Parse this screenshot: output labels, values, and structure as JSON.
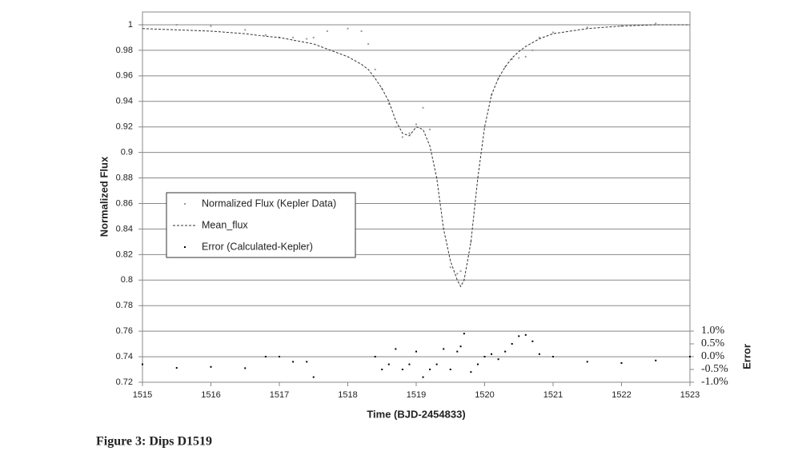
{
  "chart_data": {
    "type": "line",
    "caption": "Figure 3: Dips D1519",
    "xlabel": "Time (BJD-2454833)",
    "ylabel": "Normalized Flux",
    "y2label": "Error",
    "x": [
      1515,
      1515.5,
      1516,
      1516.5,
      1516.8,
      1517,
      1517.2,
      1517.4,
      1517.5,
      1517.7,
      1518,
      1518.2,
      1518.3,
      1518.4,
      1518.5,
      1518.6,
      1518.7,
      1518.8,
      1518.9,
      1519,
      1519.1,
      1519.2,
      1519.3,
      1519.4,
      1519.5,
      1519.6,
      1519.65,
      1519.7,
      1519.8,
      1519.9,
      1520,
      1520.1,
      1520.2,
      1520.3,
      1520.4,
      1520.5,
      1520.6,
      1520.7,
      1520.8,
      1521,
      1521.5,
      1522,
      1522.5,
      1523
    ],
    "series": [
      {
        "name": "Normalized Flux (Kepler Data)",
        "color": "#999999",
        "mode": "markers",
        "values": [
          1.0,
          1.0,
          0.999,
          0.996,
          0.992,
          0.99,
          0.99,
          0.989,
          0.99,
          0.995,
          0.997,
          0.995,
          0.985,
          0.965,
          0.95,
          0.938,
          0.92,
          0.912,
          0.915,
          0.922,
          0.935,
          0.918,
          0.88,
          0.84,
          0.81,
          0.805,
          0.807,
          0.8,
          0.83,
          0.88,
          0.92,
          0.945,
          0.958,
          0.967,
          0.973,
          0.974,
          0.975,
          0.98,
          0.99,
          0.994,
          0.998,
          0.999,
          1.001,
          null
        ]
      },
      {
        "name": "Mean_flux",
        "color": "#333333",
        "mode": "dashed",
        "values": [
          0.997,
          0.996,
          0.995,
          0.993,
          0.991,
          0.99,
          0.988,
          0.986,
          0.985,
          0.981,
          0.975,
          0.969,
          0.965,
          0.958,
          0.95,
          0.94,
          0.925,
          0.915,
          0.913,
          0.92,
          0.918,
          0.905,
          0.88,
          0.84,
          0.815,
          0.8,
          0.795,
          0.8,
          0.83,
          0.88,
          0.92,
          0.945,
          0.958,
          0.967,
          0.974,
          0.979,
          0.983,
          0.986,
          0.989,
          0.993,
          0.997,
          0.999,
          1.0,
          1.0
        ]
      },
      {
        "name": "Error (Calculated-Kepler)",
        "color": "#000000",
        "mode": "markers",
        "axis": "y2",
        "values": [
          -0.3,
          -0.44,
          -0.4,
          -0.45,
          0.0,
          0.0,
          -0.2,
          -0.2,
          -0.8,
          null,
          null,
          null,
          null,
          0.0,
          -0.5,
          -0.3,
          0.3,
          -0.5,
          -0.3,
          0.2,
          -0.8,
          -0.5,
          -0.3,
          0.3,
          -0.5,
          0.2,
          0.4,
          0.9,
          -0.6,
          -0.3,
          0.0,
          0.1,
          -0.1,
          0.2,
          0.5,
          0.8,
          0.85,
          0.6,
          0.1,
          0.0,
          -0.2,
          -0.25,
          -0.15,
          0.0
        ]
      }
    ],
    "xlim": [
      1515,
      1523
    ],
    "xticks": [
      1515,
      1516,
      1517,
      1518,
      1519,
      1520,
      1521,
      1522,
      1523
    ],
    "ylim": [
      0.72,
      1.01
    ],
    "yticks": [
      0.72,
      0.74,
      0.76,
      0.78,
      0.8,
      0.82,
      0.84,
      0.86,
      0.88,
      0.9,
      0.92,
      0.94,
      0.96,
      0.98,
      1
    ],
    "y2lim": [
      -1,
      13.47
    ],
    "y2ticks": [
      {
        "value": -1,
        "label": "-1.0%"
      },
      {
        "value": -0.5,
        "label": "-0.5%"
      },
      {
        "value": 0,
        "label": "0.0%"
      },
      {
        "value": 0.5,
        "label": "0.5%"
      },
      {
        "value": 1,
        "label": "1.0%"
      }
    ],
    "grid": true,
    "legend": "left"
  }
}
